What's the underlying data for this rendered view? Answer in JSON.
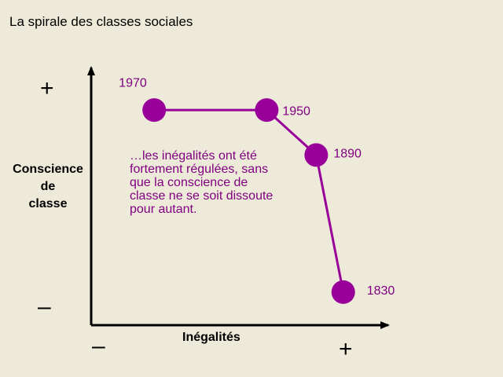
{
  "title": "La spirale des classes sociales",
  "chart_data": {
    "type": "line",
    "title": "La spirale des classes sociales",
    "xlabel": "Inégalités",
    "ylabel_lines": [
      "Conscience",
      "de",
      "classe"
    ],
    "axis_signs": {
      "y_top": "+",
      "y_bottom": "–",
      "x_left": "–",
      "x_right": "+"
    },
    "points": [
      {
        "label": "1970",
        "x": 1.0,
        "y": 8.5
      },
      {
        "label": "1950",
        "x": 3.5,
        "y": 8.5
      },
      {
        "label": "1890",
        "x": 4.6,
        "y": 6.6
      },
      {
        "label": "1830",
        "x": 5.2,
        "y": 0.8
      }
    ],
    "xlim": [
      -0.4,
      6.2
    ],
    "ylim": [
      -0.6,
      10.3
    ],
    "annotation": [
      "…les inégalités ont été",
      "fortement régulées, sans",
      "que la conscience de",
      "classe ne se soit dissoute",
      "pour autant."
    ],
    "grid": false,
    "legend": "none",
    "colors": {
      "series": "#990099",
      "annotation": "#800080",
      "axes": "#000000",
      "background": "#eeeada"
    }
  }
}
